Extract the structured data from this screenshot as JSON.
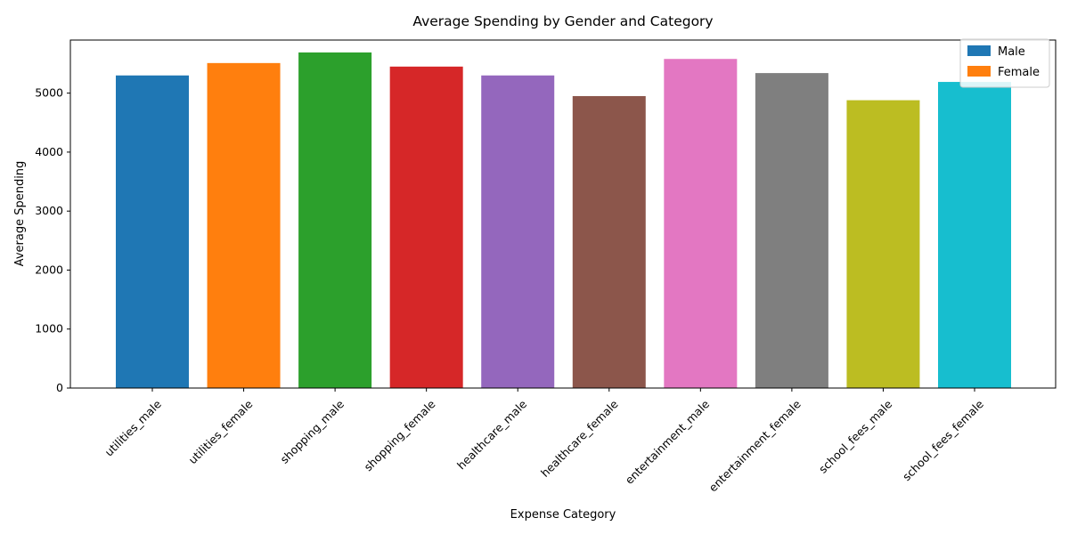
{
  "chart_data": {
    "type": "bar",
    "title": "Average Spending by Gender and Category",
    "xlabel": "Expense Category",
    "ylabel": "Average Spending",
    "ylim": [
      0,
      5900
    ],
    "yticks": [
      0,
      1000,
      2000,
      3000,
      4000,
      5000
    ],
    "grid": false,
    "legend_position": "top-right",
    "legend": [
      {
        "label": "Male",
        "color": "#1f77b4"
      },
      {
        "label": "Female",
        "color": "#ff7f0e"
      }
    ],
    "categories": [
      "utilities_male",
      "utilities_female",
      "shopping_male",
      "shopping_female",
      "healthcare_male",
      "healthcare_female",
      "entertainment_male",
      "entertainment_female",
      "school_fees_male",
      "school_fees_female"
    ],
    "values": [
      5300,
      5510,
      5690,
      5450,
      5300,
      4950,
      5580,
      5340,
      4880,
      5190
    ],
    "colors": [
      "#1f77b4",
      "#ff7f0e",
      "#2ca02c",
      "#d62728",
      "#9467bd",
      "#8c564b",
      "#e377c2",
      "#7f7f7f",
      "#bcbd22",
      "#17becf"
    ]
  }
}
